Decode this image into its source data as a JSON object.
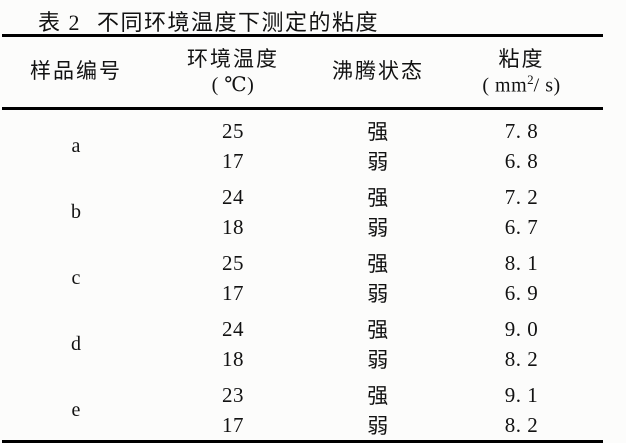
{
  "caption": {
    "label": "表 2",
    "title": "不同环境温度下测定的粘度"
  },
  "table": {
    "headers": {
      "sample": "样品编号",
      "temperature": {
        "name": "环境温度",
        "unit": "( ℃)"
      },
      "boiling": "沸腾状态",
      "viscosity": {
        "name": "粘度",
        "unit_pre": "( mm",
        "unit_sup": "2",
        "unit_post": "/ s)"
      }
    },
    "groups": [
      {
        "sample": "a",
        "rows": [
          {
            "temperature": "25",
            "boiling": "强",
            "viscosity": "7. 8"
          },
          {
            "temperature": "17",
            "boiling": "弱",
            "viscosity": "6. 8"
          }
        ]
      },
      {
        "sample": "b",
        "rows": [
          {
            "temperature": "24",
            "boiling": "强",
            "viscosity": "7. 2"
          },
          {
            "temperature": "18",
            "boiling": "弱",
            "viscosity": "6. 7"
          }
        ]
      },
      {
        "sample": "c",
        "rows": [
          {
            "temperature": "25",
            "boiling": "强",
            "viscosity": "8. 1"
          },
          {
            "temperature": "17",
            "boiling": "弱",
            "viscosity": "6. 9"
          }
        ]
      },
      {
        "sample": "d",
        "rows": [
          {
            "temperature": "24",
            "boiling": "强",
            "viscosity": "9. 0"
          },
          {
            "temperature": "18",
            "boiling": "弱",
            "viscosity": "8. 2"
          }
        ]
      },
      {
        "sample": "e",
        "rows": [
          {
            "temperature": "23",
            "boiling": "强",
            "viscosity": "9. 1"
          },
          {
            "temperature": "17",
            "boiling": "弱",
            "viscosity": "8. 2"
          }
        ]
      }
    ]
  }
}
